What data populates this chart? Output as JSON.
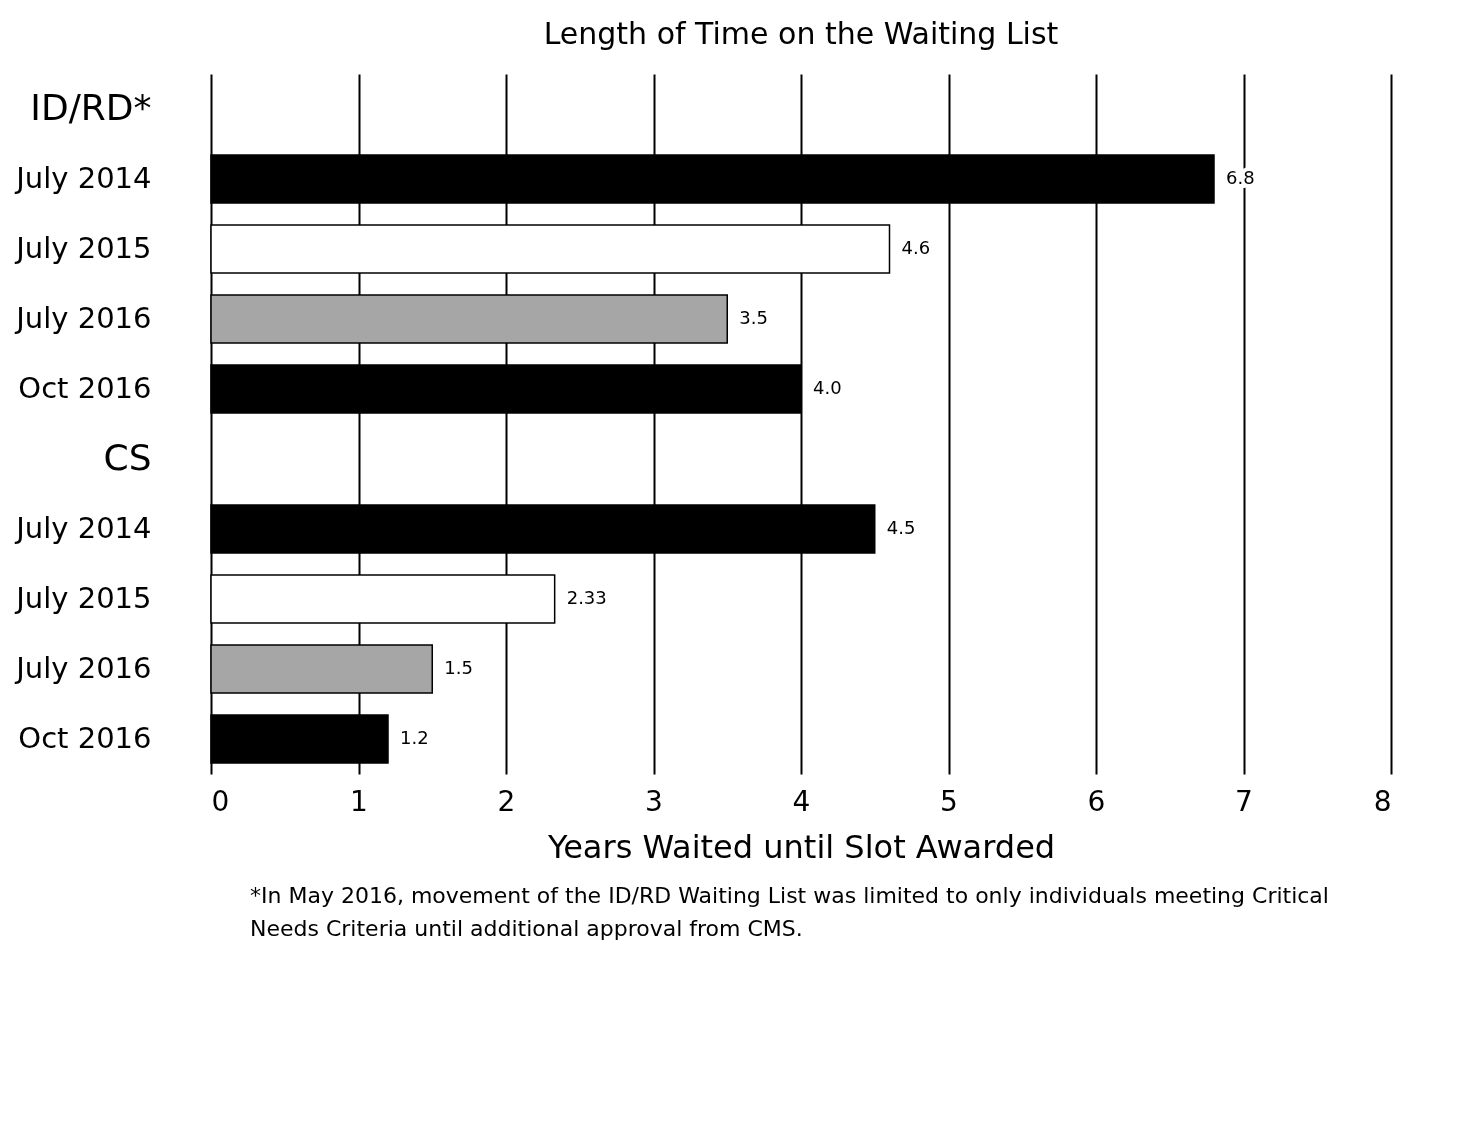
{
  "chart_data": {
    "type": "bar",
    "orientation": "horizontal",
    "title": "Length of Time on the Waiting List",
    "xlabel": "Years Waited until Slot Awarded",
    "categories": [
      "ID/RD*",
      "July 2014",
      "July 2015",
      "July 2016",
      "Oct 2016",
      "CS",
      "July 2014",
      "July 2015",
      "July 2016",
      "Oct 2016"
    ],
    "values": [
      null,
      6.8,
      4.6,
      3.5,
      4.0,
      null,
      4.5,
      2.33,
      1.5,
      1.2
    ],
    "value_labels": [
      null,
      "6.8",
      "4.6",
      "3.5",
      "4.0",
      null,
      "4.5",
      "2.33",
      "1.5",
      "1.2"
    ],
    "colors": [
      "#000000",
      "#000000",
      "#ffffff",
      "#a6a6a6",
      "#000000",
      "#000000",
      "#000000",
      "#ffffff",
      "#a6a6a6",
      "#000000"
    ],
    "xlim": [
      0,
      8
    ],
    "xticks": [
      0,
      1,
      2,
      3,
      4,
      5,
      6,
      7,
      8
    ],
    "grid": "x",
    "annotations": [
      "*In May 2016, movement of the ID/RD Waiting List was limited to only individuals meeting Critical Needs Criteria until additional approval from CMS."
    ]
  }
}
